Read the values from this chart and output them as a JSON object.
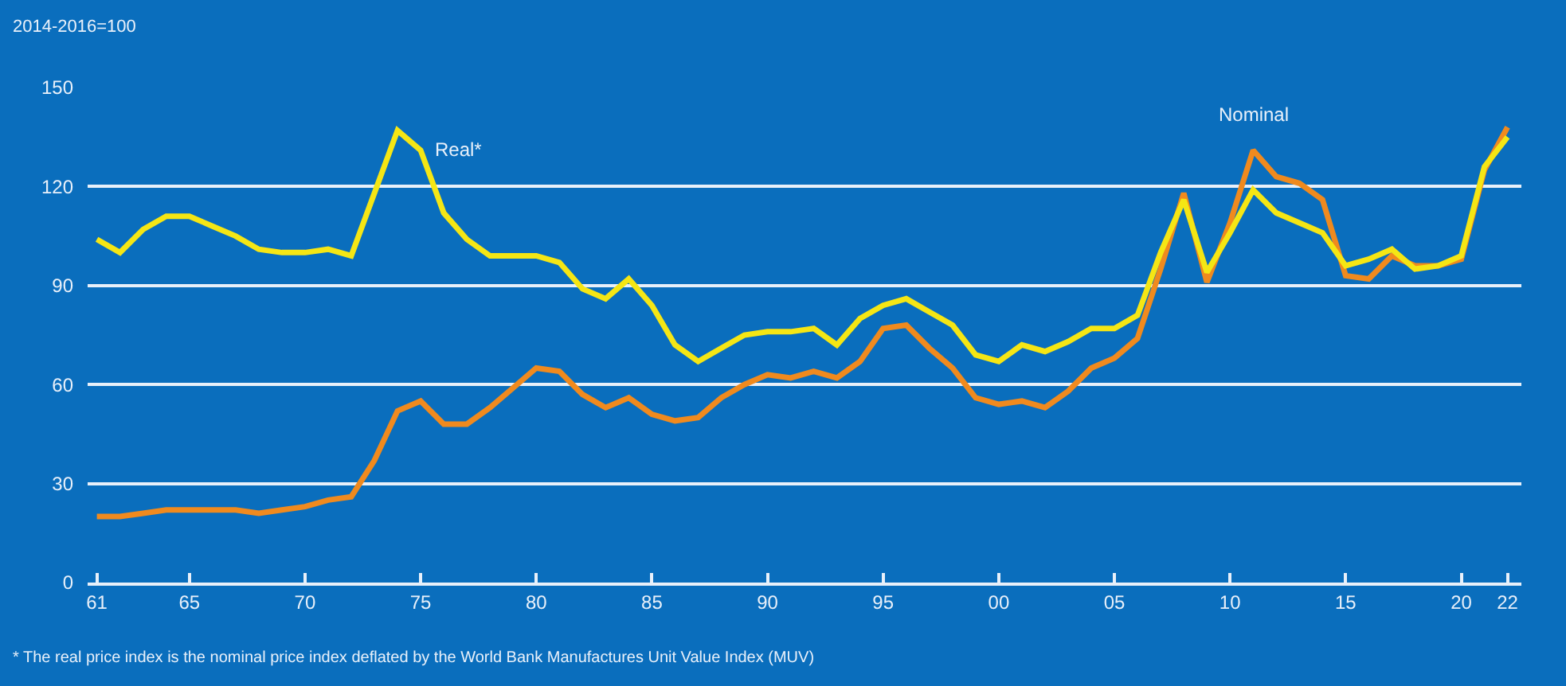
{
  "chart_data": {
    "type": "line",
    "ylabel": "2014-2016=100",
    "x": [
      1961,
      1962,
      1963,
      1964,
      1965,
      1966,
      1967,
      1968,
      1969,
      1970,
      1971,
      1972,
      1973,
      1974,
      1975,
      1976,
      1977,
      1978,
      1979,
      1980,
      1981,
      1982,
      1983,
      1984,
      1985,
      1986,
      1987,
      1988,
      1989,
      1990,
      1991,
      1992,
      1993,
      1994,
      1995,
      1996,
      1997,
      1998,
      1999,
      2000,
      2001,
      2002,
      2003,
      2004,
      2005,
      2006,
      2007,
      2008,
      2009,
      2010,
      2011,
      2012,
      2013,
      2014,
      2015,
      2016,
      2017,
      2018,
      2019,
      2020,
      2021,
      2022
    ],
    "series": [
      {
        "name": "Nominal",
        "color": "#f08a1e",
        "values": [
          20,
          20,
          21,
          22,
          22,
          22,
          22,
          21,
          22,
          23,
          25,
          26,
          37,
          52,
          55,
          48,
          48,
          53,
          59,
          65,
          64,
          57,
          53,
          56,
          51,
          49,
          50,
          56,
          60,
          63,
          62,
          64,
          62,
          67,
          77,
          78,
          71,
          65,
          56,
          54,
          55,
          53,
          58,
          65,
          68,
          74,
          95,
          118,
          91,
          109,
          131,
          123,
          121,
          116,
          93,
          92,
          99,
          96,
          96,
          98,
          125,
          138
        ]
      },
      {
        "name": "Real*",
        "color": "#f5e614",
        "values": [
          104,
          100,
          107,
          111,
          111,
          108,
          105,
          101,
          100,
          100,
          101,
          99,
          118,
          137,
          131,
          112,
          104,
          99,
          99,
          99,
          97,
          89,
          86,
          92,
          84,
          72,
          67,
          71,
          75,
          76,
          76,
          77,
          72,
          80,
          84,
          86,
          82,
          78,
          69,
          67,
          72,
          70,
          73,
          77,
          77,
          81,
          100,
          116,
          94,
          106,
          119,
          112,
          109,
          106,
          96,
          98,
          101,
          95,
          96,
          99,
          126,
          135
        ]
      }
    ],
    "xlim": [
      1960.6,
      2022.6
    ],
    "xticks": [
      {
        "value": 1961,
        "label": "61"
      },
      {
        "value": 1965,
        "label": "65"
      },
      {
        "value": 1970,
        "label": "70"
      },
      {
        "value": 1975,
        "label": "75"
      },
      {
        "value": 1980,
        "label": "80"
      },
      {
        "value": 1985,
        "label": "85"
      },
      {
        "value": 1990,
        "label": "90"
      },
      {
        "value": 1995,
        "label": "95"
      },
      {
        "value": 2000,
        "label": "00"
      },
      {
        "value": 2005,
        "label": "05"
      },
      {
        "value": 2010,
        "label": "10"
      },
      {
        "value": 2015,
        "label": "15"
      },
      {
        "value": 2020,
        "label": "20"
      },
      {
        "value": 2022,
        "label": "22"
      }
    ],
    "ylim": [
      0,
      150
    ],
    "yticks": [
      0,
      30,
      60,
      90,
      120,
      150
    ],
    "grid": "y",
    "legend": false,
    "marker": "none",
    "line_style": "solid",
    "annotations": [
      "* The real price index is the nominal price index deflated by the World Bank Manufactures Unit Value Index (MUV)"
    ]
  }
}
